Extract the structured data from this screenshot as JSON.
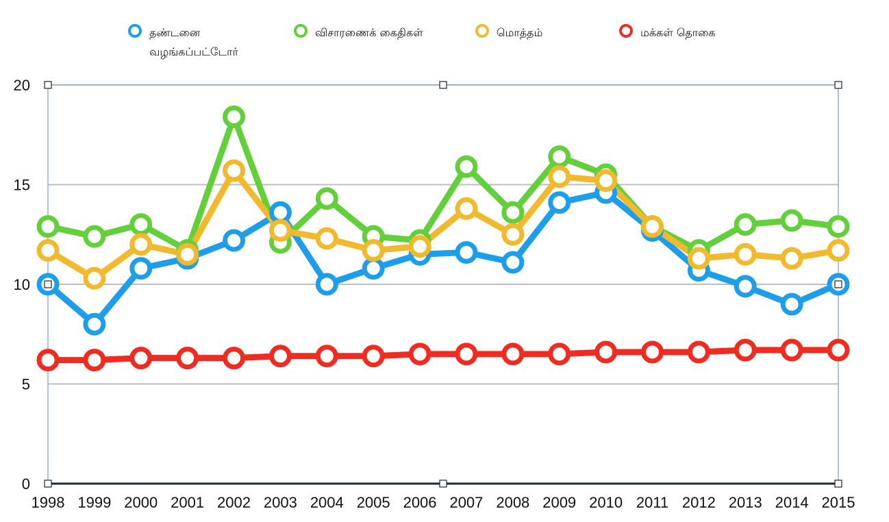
{
  "chart_data": {
    "type": "line",
    "categories": [
      "1998",
      "1999",
      "2000",
      "2001",
      "2002",
      "2003",
      "2004",
      "2005",
      "2006",
      "2007",
      "2008",
      "2009",
      "2010",
      "2011",
      "2012",
      "2013",
      "2014",
      "2015"
    ],
    "ylim": [
      0,
      20
    ],
    "yticks": [
      "0",
      "5",
      "10",
      "15",
      "20"
    ],
    "grid": true,
    "legend_position": "top",
    "series": [
      {
        "name": "தண்டனை வழங்கப்பட்டோர்",
        "color": "#1e9ee8",
        "values": [
          10.0,
          8.0,
          10.8,
          11.3,
          12.2,
          13.6,
          10.0,
          10.8,
          11.5,
          11.6,
          11.1,
          14.1,
          14.6,
          12.7,
          10.7,
          9.9,
          9.0,
          10.0
        ]
      },
      {
        "name": "விசாரணைக் கைதிகள்",
        "color": "#62cf3b",
        "values": [
          12.9,
          12.4,
          13.0,
          11.7,
          18.4,
          12.1,
          14.3,
          12.4,
          12.2,
          15.9,
          13.6,
          16.4,
          15.5,
          12.9,
          11.7,
          13.0,
          13.2,
          12.9
        ]
      },
      {
        "name": "மொத்தம்",
        "color": "#f1ba2e",
        "values": [
          11.7,
          10.3,
          12.0,
          11.5,
          15.7,
          12.7,
          12.3,
          11.7,
          11.9,
          13.8,
          12.5,
          15.4,
          15.2,
          12.9,
          11.3,
          11.5,
          11.3,
          11.7
        ]
      },
      {
        "name": "மக்கள் தொகை",
        "color": "#ef2c21",
        "values": [
          6.2,
          6.2,
          6.3,
          6.3,
          6.3,
          6.4,
          6.4,
          6.4,
          6.5,
          6.5,
          6.5,
          6.5,
          6.6,
          6.6,
          6.6,
          6.7,
          6.7,
          6.7
        ]
      }
    ]
  }
}
